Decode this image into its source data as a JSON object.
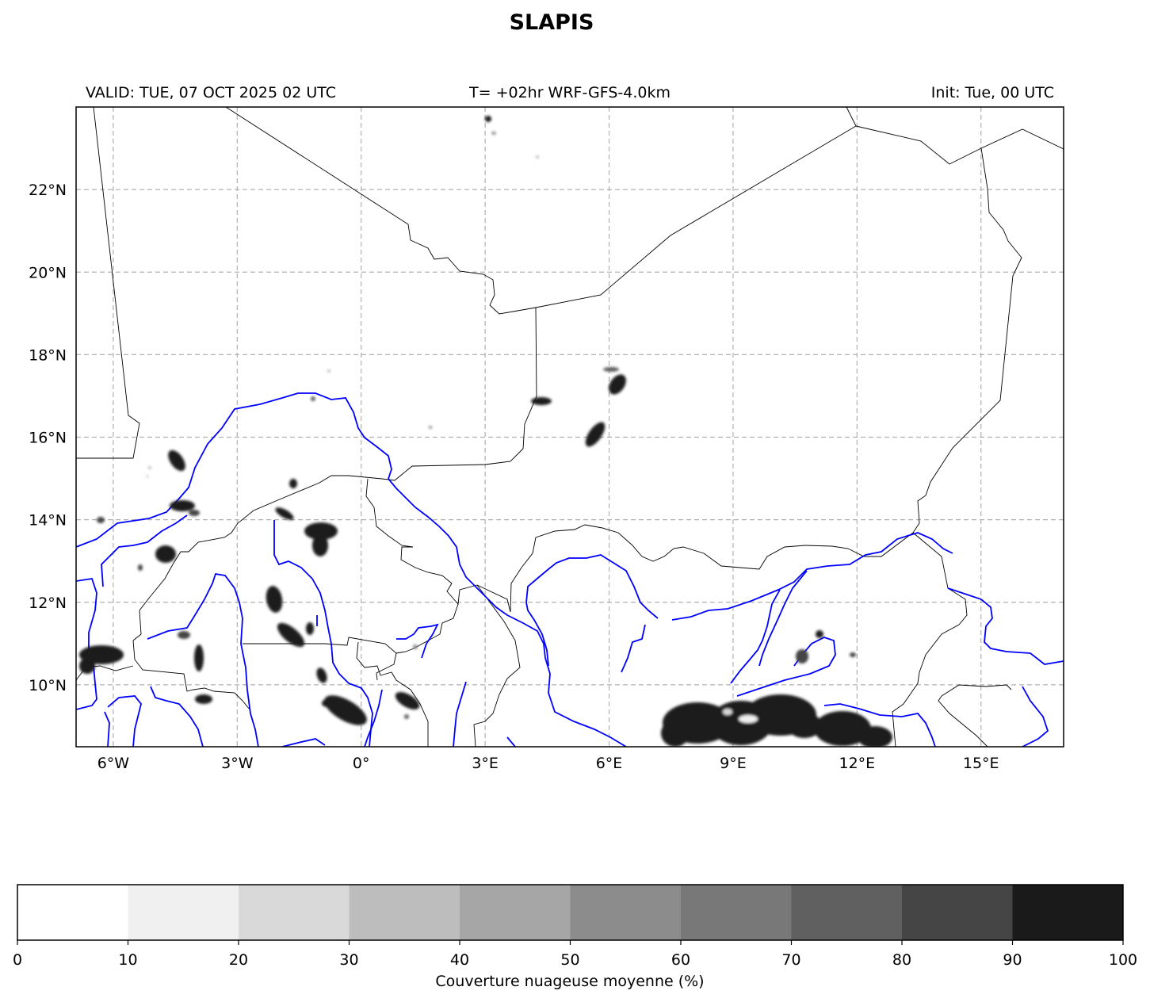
{
  "title": "SLAPIS",
  "subtitle": {
    "left": "VALID: TUE, 07 OCT 2025 02 UTC",
    "center": "T= +02hr WRF-GFS-4.0km",
    "right": "Init: Tue, 00 UTC"
  },
  "map": {
    "extent": {
      "lon_min": -6.9,
      "lon_max": 17.0,
      "lat_min": 8.5,
      "lat_max": 24.0
    },
    "gridlines": "dashed gray",
    "lon_ticks": [
      {
        "value": -6,
        "label": "6°W"
      },
      {
        "value": -3,
        "label": "3°W"
      },
      {
        "value": 0,
        "label": "0°"
      },
      {
        "value": 3,
        "label": "3°E"
      },
      {
        "value": 6,
        "label": "6°E"
      },
      {
        "value": 9,
        "label": "9°E"
      },
      {
        "value": 12,
        "label": "12°E"
      },
      {
        "value": 15,
        "label": "15°E"
      }
    ],
    "lat_ticks": [
      {
        "value": 10,
        "label": "10°N"
      },
      {
        "value": 12,
        "label": "12°N"
      },
      {
        "value": 14,
        "label": "14°N"
      },
      {
        "value": 16,
        "label": "16°N"
      },
      {
        "value": 18,
        "label": "18°N"
      },
      {
        "value": 20,
        "label": "20°N"
      },
      {
        "value": 22,
        "label": "22°N"
      }
    ],
    "colors": {
      "borders": "#000000",
      "rivers": "#0000ff",
      "grid": "#b0b0b0",
      "cloud": "#1a1a1a"
    }
  },
  "colorbar": {
    "label": "Couverture nuageuse moyenne (%)",
    "ticks": [
      "0",
      "10",
      "20",
      "30",
      "40",
      "50",
      "60",
      "70",
      "80",
      "90",
      "100"
    ],
    "bins": [
      {
        "from": 0,
        "to": 10,
        "color": "#ffffff"
      },
      {
        "from": 10,
        "to": 20,
        "color": "#f0f0f0"
      },
      {
        "from": 20,
        "to": 30,
        "color": "#d9d9d9"
      },
      {
        "from": 30,
        "to": 40,
        "color": "#bdbdbd"
      },
      {
        "from": 40,
        "to": 50,
        "color": "#a6a6a6"
      },
      {
        "from": 50,
        "to": 60,
        "color": "#8c8c8c"
      },
      {
        "from": 60,
        "to": 70,
        "color": "#787878"
      },
      {
        "from": 70,
        "to": 80,
        "color": "#606060"
      },
      {
        "from": 80,
        "to": 90,
        "color": "#454545"
      },
      {
        "from": 90,
        "to": 100,
        "color": "#1a1a1a"
      }
    ]
  }
}
